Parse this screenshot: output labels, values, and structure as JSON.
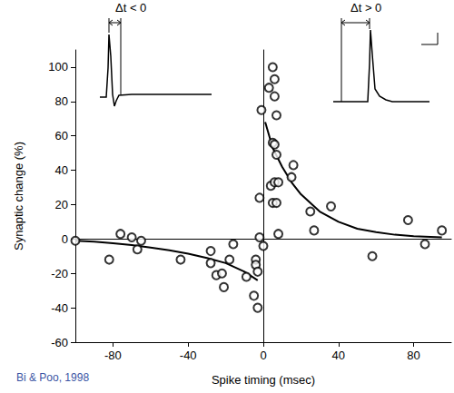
{
  "chart_data": {
    "type": "scatter",
    "x_label": "Spike timing (msec)",
    "y_label": "Synaptic change (%)",
    "annotations": [
      "Δt < 0",
      "Δt > 0",
      "Bi & Poo, 1998"
    ],
    "xlim": [
      -100,
      100
    ],
    "xticks": [
      -80,
      -40,
      0,
      40,
      80
    ],
    "ylim": [
      -60,
      110
    ],
    "yticks": [
      -60,
      -40,
      -20,
      0,
      20,
      40,
      60,
      80,
      100
    ],
    "grid": false,
    "series": [
      {
        "type": "scatter",
        "marker": "open circle",
        "color": "#000000",
        "x": [
          -100,
          -82,
          -76,
          -70,
          -67,
          -65,
          -44,
          -28,
          -28,
          -25,
          -22,
          -21,
          -18,
          -16,
          -9,
          -5,
          -4,
          -4,
          -3,
          -3,
          -2,
          -2,
          -1,
          0,
          3,
          5,
          6,
          6,
          7,
          5,
          6,
          7,
          4,
          5,
          7,
          6,
          8,
          8,
          15,
          16,
          25,
          27,
          36,
          58,
          77,
          86,
          95
        ],
        "values": [
          -1,
          -12,
          3,
          1,
          -6,
          -1,
          -12,
          -7,
          -14,
          -21,
          -20,
          -28,
          -12,
          -3,
          -22,
          -33,
          -12,
          -15,
          -19,
          -40,
          1,
          24,
          75,
          -4,
          88,
          100,
          93,
          83,
          72,
          56,
          55,
          49,
          31,
          21,
          21,
          33,
          33,
          3,
          36,
          43,
          16,
          5,
          19,
          -10,
          11,
          -3,
          5
        ]
      },
      {
        "type": "line",
        "marker": "none",
        "line_style": "solid",
        "color": "#000000",
        "x": [
          -100,
          -90,
          -80,
          -70,
          -60,
          -50,
          -40,
          -30,
          -20,
          -10,
          -3
        ],
        "values": [
          -1,
          -1.5,
          -2.5,
          -3.5,
          -5,
          -6.5,
          -8.5,
          -11,
          -14,
          -19,
          -24
        ]
      },
      {
        "type": "line",
        "marker": "none",
        "line_style": "solid",
        "color": "#000000",
        "x": [
          1,
          5,
          10,
          15,
          20,
          30,
          40,
          50,
          60,
          70,
          80,
          95
        ],
        "values": [
          68,
          53,
          42,
          33,
          26,
          16,
          10,
          6,
          4,
          2.5,
          1.6,
          1
        ]
      }
    ]
  }
}
